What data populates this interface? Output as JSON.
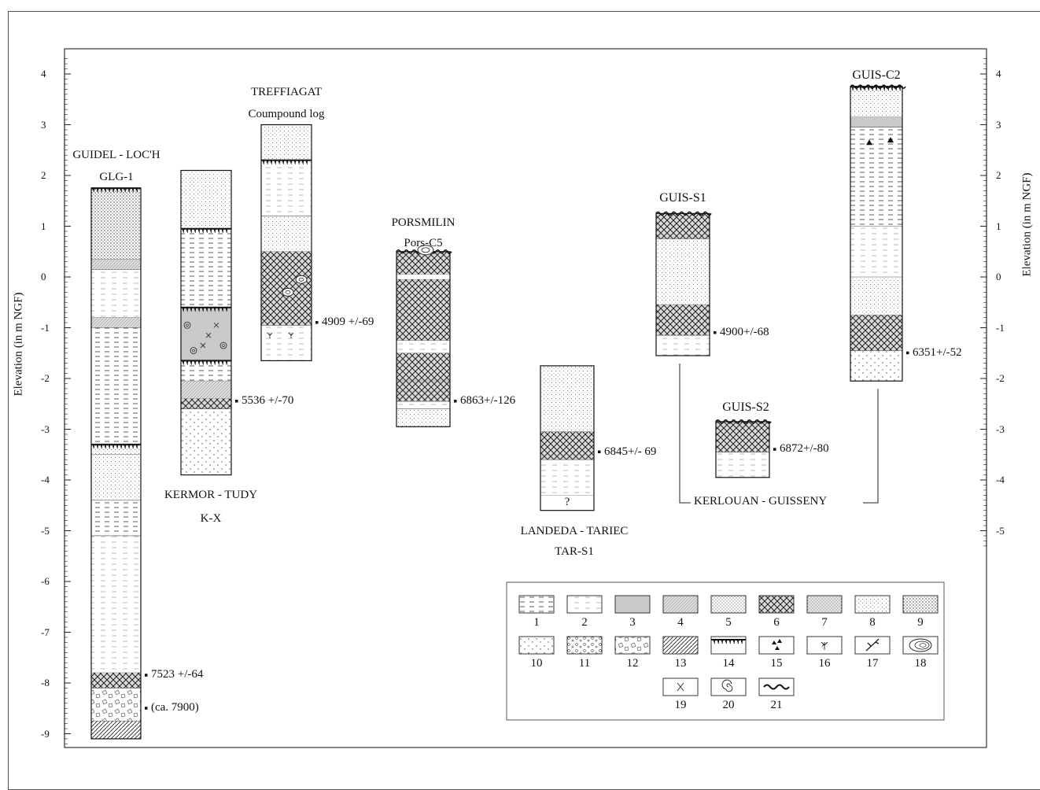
{
  "axes": {
    "left_title": "Elevation (in m NGF)",
    "right_title": "Elevation (in m NGF)",
    "left_ticks": [
      "4",
      "3",
      "2",
      "1",
      "0",
      "-1",
      "-2",
      "-3",
      "-4",
      "-5",
      "-6",
      "-7",
      "-8",
      "-9"
    ],
    "right_ticks": [
      "4",
      "3",
      "2",
      "1",
      "0",
      "-1",
      "-2",
      "-3",
      "-4",
      "-5"
    ]
  },
  "cores": [
    {
      "id": "guidel",
      "title": "GUIDEL - LOC'H",
      "code": "GLG-1",
      "top": 1.75,
      "base": -9.1,
      "dates": [
        {
          "label": "7523 +/-64",
          "elev": -7.85
        },
        {
          "label": "(ca. 7900)",
          "elev": -8.5
        }
      ]
    },
    {
      "id": "kermor",
      "title": "KERMOR - TUDY",
      "code": "K-X",
      "top": 2.1,
      "base": -3.9,
      "dates": [
        {
          "label": "5536 +/-70",
          "elev": -2.45
        }
      ]
    },
    {
      "id": "treffiagat",
      "title": "TREFFIAGAT",
      "code": "Coumpound log",
      "top": 3.0,
      "base": -1.65,
      "dates": [
        {
          "label": "4909 +/-69",
          "elev": -0.9
        }
      ]
    },
    {
      "id": "porsmilin",
      "title": "PORSMILIN",
      "code": "Pors-C5",
      "top": 0.5,
      "base": -2.95,
      "dates": [
        {
          "label": "6863+/-126",
          "elev": -2.45
        }
      ]
    },
    {
      "id": "landeda",
      "title": "LANDEDA - TARIEC",
      "code": "TAR-S1",
      "top": -1.75,
      "base": -4.6,
      "dates": [
        {
          "label": "6845+/- 69",
          "elev": -3.45
        }
      ],
      "question": "?"
    },
    {
      "id": "guis-s1",
      "title": "GUIS-S1",
      "code": "",
      "top": 1.25,
      "base": -1.55,
      "dates": [
        {
          "label": "4900+/-68",
          "elev": -1.1
        }
      ]
    },
    {
      "id": "guis-s2",
      "title": "GUIS-S2",
      "code": "",
      "top": -2.85,
      "base": -3.95,
      "dates": [
        {
          "label": "6872+/-80",
          "elev": -3.4
        }
      ]
    },
    {
      "id": "guis-c2",
      "title": "GUIS-C2",
      "code": "",
      "top": 3.75,
      "base": -2.05,
      "dates": [
        {
          "label": "6351+/-52",
          "elev": -1.5
        }
      ]
    }
  ],
  "group_label": "KERLOUAN - GUISSENY",
  "legend": {
    "items": [
      "1",
      "2",
      "3",
      "4",
      "5",
      "6",
      "7",
      "8",
      "9",
      "10",
      "11",
      "12",
      "13",
      "14",
      "15",
      "16",
      "17",
      "18",
      "19",
      "20",
      "21"
    ]
  }
}
